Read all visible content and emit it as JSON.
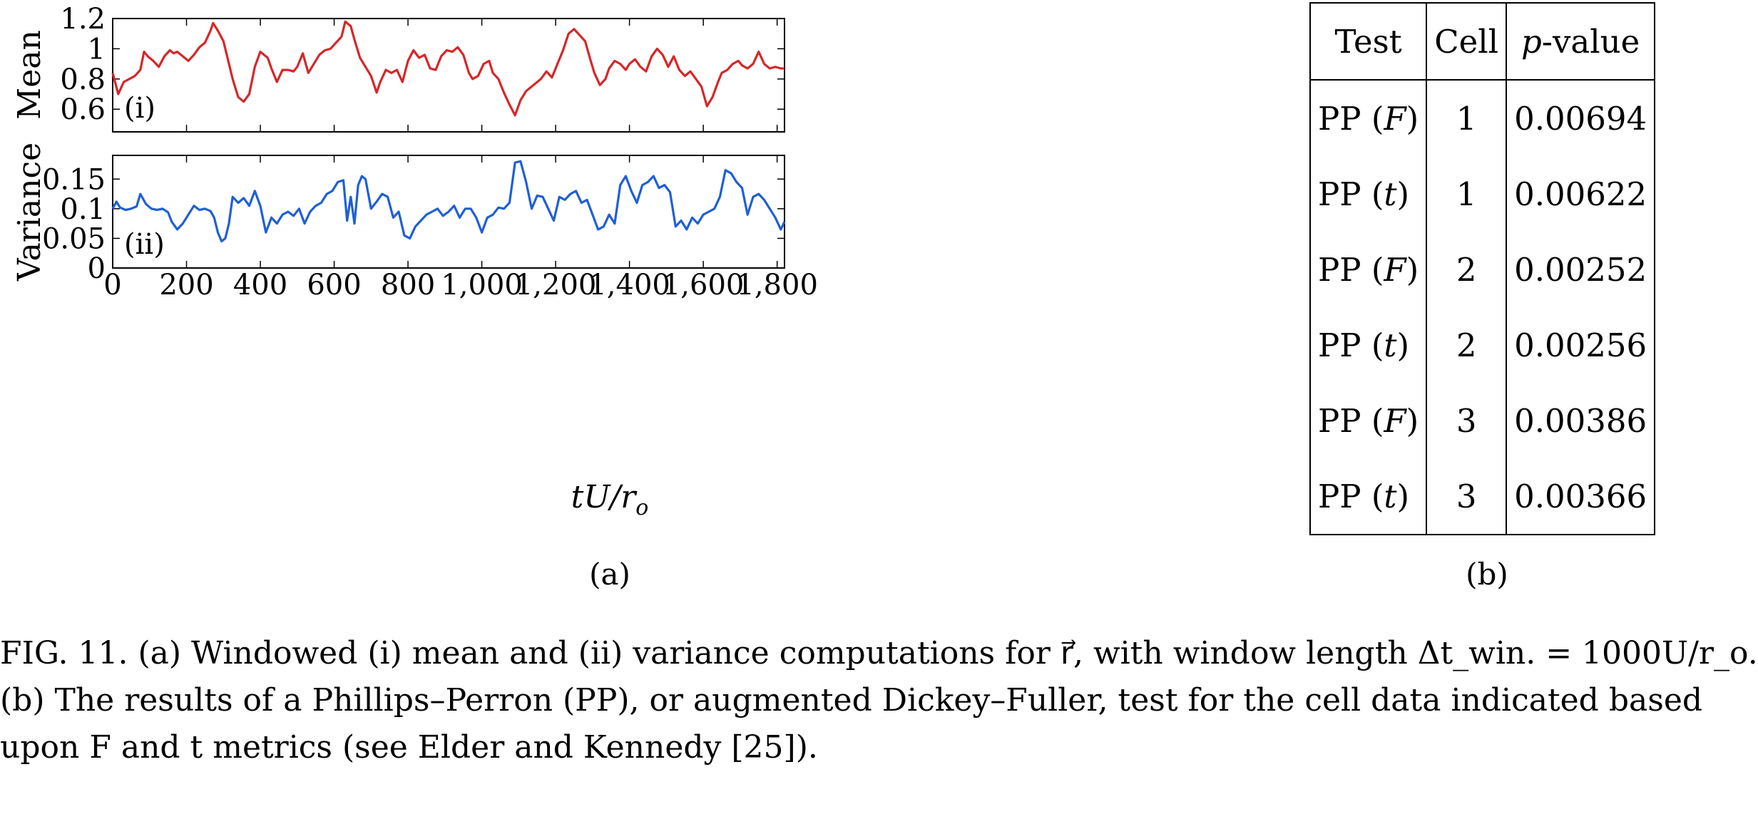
{
  "figure": {
    "subfigure_a_label": "(a)",
    "subfigure_b_label": "(b)"
  },
  "chart_data": [
    {
      "type": "line",
      "panel_label": "(i)",
      "ylabel": "Mean",
      "xlabel": "tU/r_o",
      "xlim": [
        0,
        1820
      ],
      "ylim": [
        0.45,
        1.2
      ],
      "yticks": [
        0.6,
        0.8,
        1,
        1.2
      ],
      "ytick_labels": [
        "0.6",
        "0.8",
        "1",
        "1.2"
      ],
      "color": "#d62728",
      "series": [
        {
          "x": [
            0,
            15,
            30,
            45,
            60,
            75,
            85,
            95,
            110,
            125,
            140,
            155,
            165,
            175,
            190,
            205,
            220,
            235,
            250,
            265,
            272,
            285,
            300,
            310,
            325,
            340,
            355,
            370,
            385,
            400,
            420,
            430,
            445,
            460,
            475,
            490,
            500,
            515,
            530,
            545,
            560,
            575,
            590,
            605,
            620,
            630,
            645,
            655,
            670,
            685,
            700,
            715,
            725,
            740,
            755,
            770,
            785,
            800,
            815,
            830,
            845,
            860,
            875,
            890,
            905,
            920,
            935,
            950,
            965,
            975,
            990,
            1005,
            1020,
            1030,
            1045,
            1060,
            1075,
            1090,
            1105,
            1120,
            1130,
            1145,
            1160,
            1175,
            1190,
            1205,
            1220,
            1235,
            1250,
            1265,
            1280,
            1295,
            1305,
            1320,
            1335,
            1345,
            1360,
            1375,
            1390,
            1400,
            1415,
            1430,
            1445,
            1460,
            1475,
            1490,
            1505,
            1520,
            1535,
            1550,
            1565,
            1580,
            1595,
            1610,
            1625,
            1640,
            1650,
            1665,
            1680,
            1695,
            1705,
            1720,
            1735,
            1750,
            1765,
            1780,
            1795,
            1810,
            1820
          ],
          "y": [
            0.84,
            0.7,
            0.78,
            0.8,
            0.82,
            0.86,
            0.98,
            0.95,
            0.92,
            0.88,
            0.95,
            0.99,
            0.97,
            0.98,
            0.95,
            0.92,
            0.96,
            1.01,
            1.04,
            1.12,
            1.17,
            1.12,
            1.05,
            0.95,
            0.8,
            0.68,
            0.65,
            0.7,
            0.88,
            0.98,
            0.94,
            0.87,
            0.78,
            0.86,
            0.86,
            0.85,
            0.88,
            0.97,
            0.84,
            0.9,
            0.96,
            0.99,
            1.0,
            1.04,
            1.08,
            1.18,
            1.15,
            1.06,
            0.94,
            0.88,
            0.82,
            0.71,
            0.78,
            0.86,
            0.84,
            0.86,
            0.78,
            0.92,
            0.99,
            0.94,
            0.96,
            0.87,
            0.86,
            0.95,
            0.99,
            0.98,
            1.01,
            0.96,
            0.84,
            0.8,
            0.82,
            0.9,
            0.92,
            0.84,
            0.8,
            0.71,
            0.63,
            0.56,
            0.66,
            0.72,
            0.74,
            0.77,
            0.8,
            0.85,
            0.81,
            0.9,
            0.99,
            1.1,
            1.13,
            1.09,
            1.05,
            0.92,
            0.84,
            0.76,
            0.8,
            0.87,
            0.92,
            0.9,
            0.86,
            0.9,
            0.93,
            0.88,
            0.85,
            0.95,
            1.0,
            0.96,
            0.88,
            0.95,
            0.86,
            0.82,
            0.85,
            0.8,
            0.75,
            0.62,
            0.68,
            0.78,
            0.84,
            0.86,
            0.9,
            0.92,
            0.89,
            0.87,
            0.9,
            0.98,
            0.9,
            0.87,
            0.88,
            0.87,
            0.87
          ]
        }
      ]
    },
    {
      "type": "line",
      "panel_label": "(ii)",
      "ylabel": "Variance",
      "xlabel": "tU/r_o",
      "xlim": [
        0,
        1820
      ],
      "ylim": [
        0,
        0.19
      ],
      "yticks": [
        0,
        0.05,
        0.1,
        0.15
      ],
      "ytick_labels": [
        "0",
        "0.05",
        "0.1",
        "0.15"
      ],
      "xticks": [
        0,
        200,
        400,
        600,
        800,
        1000,
        1200,
        1400,
        1600,
        1800
      ],
      "xtick_labels": [
        "0",
        "200",
        "400",
        "600",
        "800",
        "1,000",
        "1,200",
        "1,400",
        "1,600",
        "1,800"
      ],
      "color": "#1f5fd6",
      "series": [
        {
          "x": [
            0,
            10,
            20,
            35,
            50,
            65,
            75,
            90,
            105,
            120,
            135,
            150,
            160,
            175,
            190,
            205,
            220,
            235,
            250,
            265,
            275,
            285,
            295,
            305,
            315,
            325,
            340,
            355,
            370,
            385,
            400,
            415,
            430,
            445,
            460,
            475,
            490,
            505,
            520,
            535,
            550,
            565,
            580,
            595,
            610,
            625,
            635,
            645,
            655,
            665,
            675,
            685,
            700,
            715,
            730,
            745,
            760,
            775,
            790,
            805,
            820,
            835,
            850,
            865,
            880,
            895,
            910,
            925,
            940,
            955,
            970,
            985,
            1000,
            1015,
            1030,
            1045,
            1060,
            1075,
            1090,
            1105,
            1120,
            1135,
            1150,
            1165,
            1180,
            1195,
            1210,
            1225,
            1240,
            1255,
            1270,
            1285,
            1300,
            1315,
            1330,
            1345,
            1360,
            1375,
            1390,
            1405,
            1420,
            1435,
            1450,
            1465,
            1480,
            1495,
            1510,
            1525,
            1540,
            1555,
            1570,
            1585,
            1600,
            1615,
            1630,
            1645,
            1660,
            1675,
            1690,
            1705,
            1720,
            1735,
            1750,
            1765,
            1780,
            1795,
            1810,
            1820
          ],
          "y": [
            0.1,
            0.112,
            0.102,
            0.098,
            0.1,
            0.104,
            0.125,
            0.108,
            0.1,
            0.098,
            0.1,
            0.094,
            0.078,
            0.065,
            0.075,
            0.09,
            0.105,
            0.098,
            0.1,
            0.096,
            0.085,
            0.06,
            0.045,
            0.05,
            0.075,
            0.12,
            0.11,
            0.118,
            0.105,
            0.13,
            0.105,
            0.06,
            0.085,
            0.075,
            0.09,
            0.095,
            0.088,
            0.1,
            0.075,
            0.095,
            0.105,
            0.11,
            0.125,
            0.13,
            0.145,
            0.148,
            0.08,
            0.12,
            0.075,
            0.14,
            0.155,
            0.15,
            0.1,
            0.112,
            0.125,
            0.12,
            0.085,
            0.095,
            0.055,
            0.05,
            0.07,
            0.08,
            0.09,
            0.095,
            0.1,
            0.088,
            0.095,
            0.105,
            0.085,
            0.1,
            0.1,
            0.085,
            0.06,
            0.085,
            0.09,
            0.102,
            0.1,
            0.11,
            0.178,
            0.18,
            0.145,
            0.1,
            0.122,
            0.12,
            0.1,
            0.08,
            0.12,
            0.115,
            0.125,
            0.13,
            0.11,
            0.115,
            0.09,
            0.065,
            0.07,
            0.09,
            0.075,
            0.14,
            0.155,
            0.13,
            0.11,
            0.14,
            0.145,
            0.155,
            0.135,
            0.14,
            0.128,
            0.07,
            0.08,
            0.065,
            0.085,
            0.075,
            0.09,
            0.095,
            0.1,
            0.12,
            0.165,
            0.16,
            0.145,
            0.135,
            0.09,
            0.12,
            0.125,
            0.115,
            0.1,
            0.085,
            0.065,
            0.078
          ]
        }
      ]
    }
  ],
  "table": {
    "headers": [
      "Test",
      "Cell",
      "p-value"
    ],
    "rows": [
      {
        "test": "PP",
        "metric": "F",
        "cell": "1",
        "pvalue": "0.00694"
      },
      {
        "test": "PP",
        "metric": "t",
        "cell": "1",
        "pvalue": "0.00622"
      },
      {
        "test": "PP",
        "metric": "F",
        "cell": "2",
        "pvalue": "0.00252"
      },
      {
        "test": "PP",
        "metric": "t",
        "cell": "2",
        "pvalue": "0.00256"
      },
      {
        "test": "PP",
        "metric": "F",
        "cell": "3",
        "pvalue": "0.00386"
      },
      {
        "test": "PP",
        "metric": "t",
        "cell": "3",
        "pvalue": "0.00366"
      }
    ]
  },
  "caption": {
    "fig_label": "FIG. 11.",
    "line1": "(a) Windowed (i) mean and (ii) variance computations for r⃗, with window length Δt_win. = 1000U/r_o.",
    "line2": "(b) The results of a Phillips–Perron (PP), or augmented Dickey–Fuller, test for the cell data indicated based",
    "line3": "upon F and t metrics (see Elder and Kennedy [25])."
  },
  "colors": {
    "mean_line": "#d62728",
    "variance_line": "#1f5fd6"
  }
}
